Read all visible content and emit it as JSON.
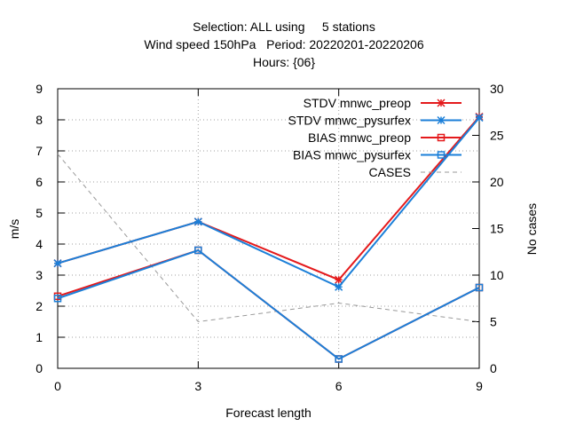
{
  "chart_data": {
    "type": "line",
    "title_lines": [
      "Selection: ALL using     5 stations",
      "Wind speed 150hPa   Period: 20220201-20220206",
      "Hours: {06}"
    ],
    "xlabel": "Forecast length",
    "ylabel": "m/s",
    "y2label": "No cases",
    "x": [
      0,
      3,
      6,
      9
    ],
    "xlim": [
      0,
      9
    ],
    "ylim": [
      0,
      9
    ],
    "y2lim": [
      0,
      30
    ],
    "xticks": [
      0,
      3,
      6,
      9
    ],
    "yticks": [
      0,
      1,
      2,
      3,
      4,
      5,
      6,
      7,
      8,
      9
    ],
    "y2ticks": [
      0,
      5,
      10,
      15,
      20,
      25,
      30
    ],
    "grid": true,
    "legend_position": "top-right",
    "series": [
      {
        "name": "STDV mnwc_preop",
        "color": "#e41a1c",
        "marker": "star",
        "axis": "y",
        "values": [
          3.38,
          4.72,
          2.85,
          8.1
        ]
      },
      {
        "name": "STDV mnwc_pysurfex",
        "color": "#1b7fd8",
        "marker": "star",
        "axis": "y",
        "values": [
          3.38,
          4.72,
          2.62,
          8.07
        ]
      },
      {
        "name": "BIAS mnwc_preop",
        "color": "#e41a1c",
        "marker": "square",
        "axis": "y",
        "values": [
          2.32,
          3.8,
          0.3,
          2.6
        ]
      },
      {
        "name": "BIAS mnwc_pysurfex",
        "color": "#1b7fd8",
        "marker": "square",
        "axis": "y",
        "values": [
          2.25,
          3.8,
          0.3,
          2.6
        ]
      },
      {
        "name": "CASES",
        "color": "#999999",
        "marker": "none",
        "dashed": true,
        "axis": "y2",
        "values": [
          23,
          5,
          7,
          5
        ]
      }
    ]
  }
}
